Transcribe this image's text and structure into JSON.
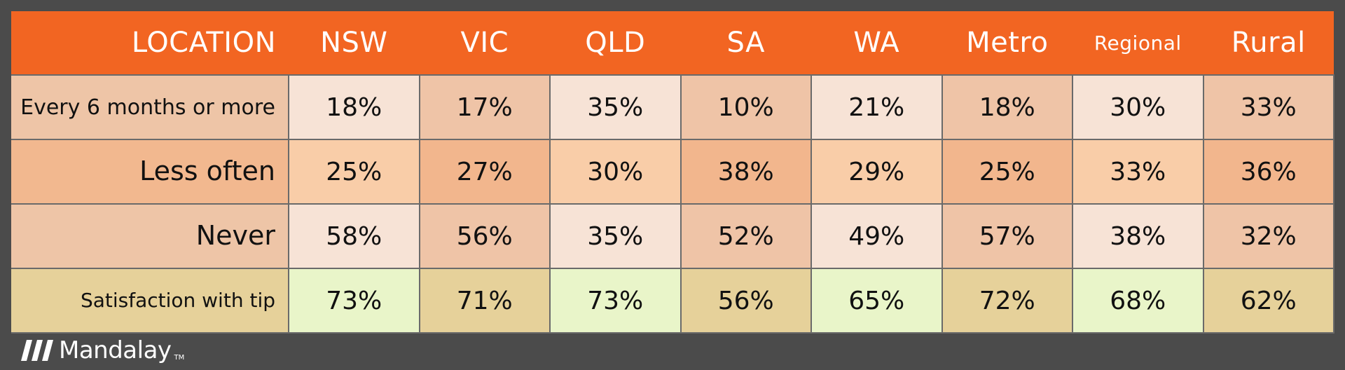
{
  "chart_data": {
    "type": "table",
    "header": [
      "LOCATION",
      "NSW",
      "VIC",
      "QLD",
      "SA",
      "WA",
      "Metro",
      "Regional",
      "Rural"
    ],
    "rows": [
      {
        "label": "Every 6 months or more",
        "values": [
          "18%",
          "17%",
          "35%",
          "10%",
          "21%",
          "18%",
          "30%",
          "33%"
        ]
      },
      {
        "label": "Less often",
        "values": [
          "25%",
          "27%",
          "30%",
          "38%",
          "29%",
          "25%",
          "33%",
          "36%"
        ]
      },
      {
        "label": "Never",
        "values": [
          "58%",
          "56%",
          "35%",
          "52%",
          "49%",
          "57%",
          "38%",
          "32%"
        ]
      },
      {
        "label": "Satisfaction with tip",
        "values": [
          "73%",
          "71%",
          "73%",
          "56%",
          "65%",
          "72%",
          "68%",
          "62%"
        ]
      }
    ]
  },
  "colors": {
    "header_bg": "#f26522",
    "header_text": "#ffffff",
    "page_bg": "#4b4b4b",
    "row_bands": [
      {
        "label": "#eec5a7",
        "alt_dark": "#efc4a7",
        "alt_light": "#f7e3d6"
      },
      {
        "label": "#f2b88f",
        "alt_dark": "#f2b68d",
        "alt_light": "#f9cda8"
      },
      {
        "label": "#eec5a7",
        "alt_dark": "#efc4a7",
        "alt_light": "#f7e3d6"
      },
      {
        "label": "#e6d19a",
        "alt_dark": "#e6d19a",
        "alt_light": "#e9f5c9"
      }
    ]
  },
  "branding": {
    "logo_text": "Mandalay",
    "logo_tm": "TM",
    "logo_icon": "mandalay-slash-logo-icon"
  }
}
